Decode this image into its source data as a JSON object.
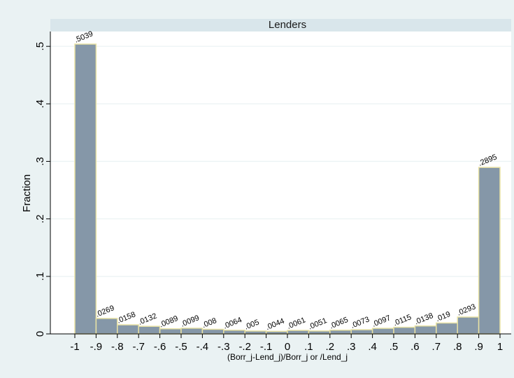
{
  "chart_data": {
    "type": "bar",
    "title": "Lenders",
    "xlabel": "(Borr_j-Lend_j)/Borr_j or /Lend_j",
    "ylabel": "Fraction",
    "bin_edges": [
      -1,
      -0.9,
      -0.8,
      -0.7,
      -0.6,
      -0.5,
      -0.4,
      -0.3,
      -0.2,
      -0.1,
      0,
      0.1,
      0.2,
      0.3,
      0.4,
      0.5,
      0.6,
      0.7,
      0.8,
      0.9,
      1
    ],
    "values": [
      0.5039,
      0.0269,
      0.0158,
      0.0132,
      0.0089,
      0.0099,
      0.008,
      0.0064,
      0.005,
      0.0044,
      0.0061,
      0.0051,
      0.0065,
      0.0073,
      0.0097,
      0.0115,
      0.0138,
      0.019,
      0.0293,
      0.2895
    ],
    "data_labels": [
      ".5039",
      ".0269",
      ".0158",
      ".0132",
      ".0089",
      ".0099",
      ".008",
      ".0064",
      ".005",
      ".0044",
      ".0061",
      ".0051",
      ".0065",
      ".0073",
      ".0097",
      ".0115",
      ".0138",
      ".019",
      ".0293",
      ".2895"
    ],
    "x_ticks": [
      -1,
      -0.9,
      -0.8,
      -0.7,
      -0.6,
      -0.5,
      -0.4,
      -0.3,
      -0.2,
      -0.1,
      0,
      0.1,
      0.2,
      0.3,
      0.4,
      0.5,
      0.6,
      0.7,
      0.8,
      0.9,
      1
    ],
    "x_tick_labels": [
      "-1",
      "-.9",
      "-.8",
      "-.7",
      "-.6",
      "-.5",
      "-.4",
      "-.3",
      "-.2",
      "-.1",
      "0",
      ".1",
      ".2",
      ".3",
      ".4",
      ".5",
      ".6",
      ".7",
      ".8",
      ".9",
      "1"
    ],
    "y_ticks": [
      0,
      0.1,
      0.2,
      0.3,
      0.4,
      0.5
    ],
    "y_tick_labels": [
      "0",
      ".1",
      ".2",
      ".3",
      ".4",
      ".5"
    ],
    "xlim": [
      -1,
      1
    ],
    "ylim": [
      0,
      0.5039
    ],
    "grid": "horizontal",
    "colors": {
      "outer_background": "#eaf2f3",
      "plot_background": "#ffffff",
      "title_band": "#d9e6eb",
      "bar_fill": "#8597a8",
      "bar_stroke": "#e8e2a4",
      "grid": "#eaf2f3"
    }
  }
}
